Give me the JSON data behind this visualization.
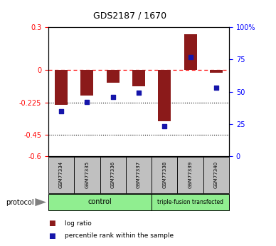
{
  "title": "GDS2187 / 1670",
  "samples": [
    "GSM77334",
    "GSM77335",
    "GSM77336",
    "GSM77337",
    "GSM77338",
    "GSM77339",
    "GSM77340"
  ],
  "log_ratio": [
    -0.24,
    -0.175,
    -0.09,
    -0.115,
    -0.355,
    0.25,
    -0.018
  ],
  "percentile_rank": [
    35,
    42,
    46,
    49,
    23,
    77,
    53
  ],
  "ylim_left": [
    -0.6,
    0.3
  ],
  "ylim_right": [
    0,
    100
  ],
  "yticks_left": [
    0.3,
    0.0,
    -0.225,
    -0.45,
    -0.6
  ],
  "yticks_right": [
    100,
    75,
    50,
    25,
    0
  ],
  "bar_color": "#8B1A1A",
  "scatter_color": "#1515AA",
  "bar_width": 0.5,
  "control_count": 4,
  "legend_bar_label": "log ratio",
  "legend_scatter_label": "percentile rank within the sample",
  "protocol_label": "protocol",
  "group_color": "#90EE90",
  "sample_box_color": "#C0C0C0"
}
